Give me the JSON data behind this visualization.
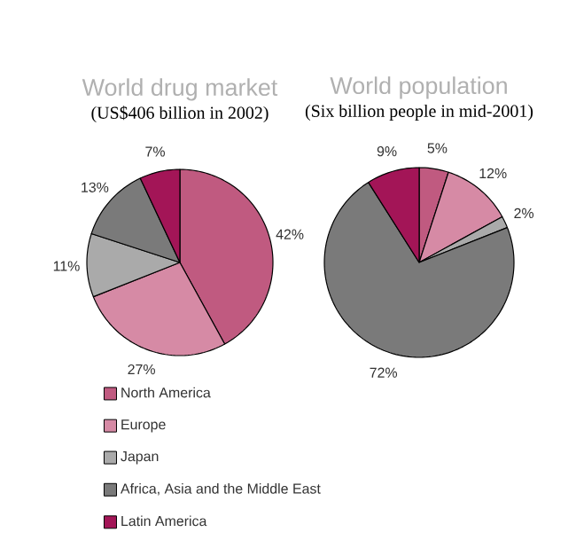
{
  "chart_data": [
    {
      "type": "pie",
      "title": "World drug market",
      "subtitle": "(US$406 billion in 2002)",
      "categories": [
        "North America",
        "Europe",
        "Japan",
        "Africa, Asia and the Middle East",
        "Latin America"
      ],
      "values": [
        42,
        27,
        11,
        13,
        7
      ],
      "value_labels": [
        "42%",
        "27%",
        "11%",
        "13%",
        "7%"
      ],
      "colors": [
        "#c05a80",
        "#d68aa5",
        "#aaaaaa",
        "#7a7a7a",
        "#a31557"
      ],
      "legend": "bottom"
    },
    {
      "type": "pie",
      "title": "World population",
      "subtitle": "(Six billion people in mid-2001)",
      "categories": [
        null,
        null,
        null,
        null,
        null
      ],
      "values": [
        5,
        12,
        2,
        72,
        9
      ],
      "value_labels": [
        "5%",
        "12%",
        "2%",
        "72%",
        "9%"
      ],
      "colors": [
        "#c05a80",
        "#d68aa5",
        "#aaaaaa",
        "#7a7a7a",
        "#a31557"
      ]
    }
  ]
}
